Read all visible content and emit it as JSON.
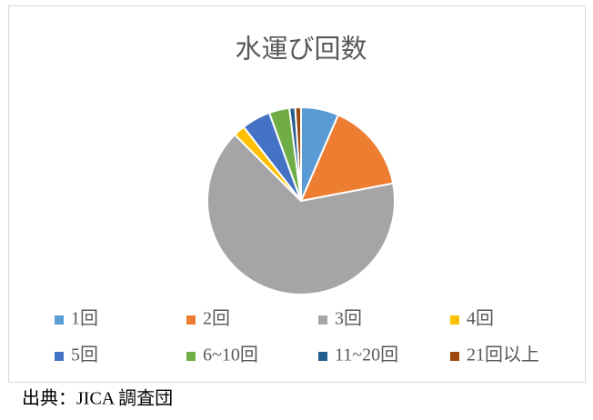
{
  "chart_data": {
    "type": "pie",
    "title": "水運び回数",
    "categories": [
      "1回",
      "2回",
      "3回",
      "4回",
      "5回",
      "6~10回",
      "11~20回",
      "21回以上"
    ],
    "values": [
      6.5,
      15.5,
      65.5,
      2,
      5,
      3.5,
      1,
      1
    ],
    "colors": [
      "#5b9bd5",
      "#ed7d31",
      "#a5a5a5",
      "#ffc000",
      "#4472c4",
      "#70ad47",
      "#255e91",
      "#9e480e"
    ],
    "legend": "bottom"
  },
  "source": "出典：JICA 調査団"
}
